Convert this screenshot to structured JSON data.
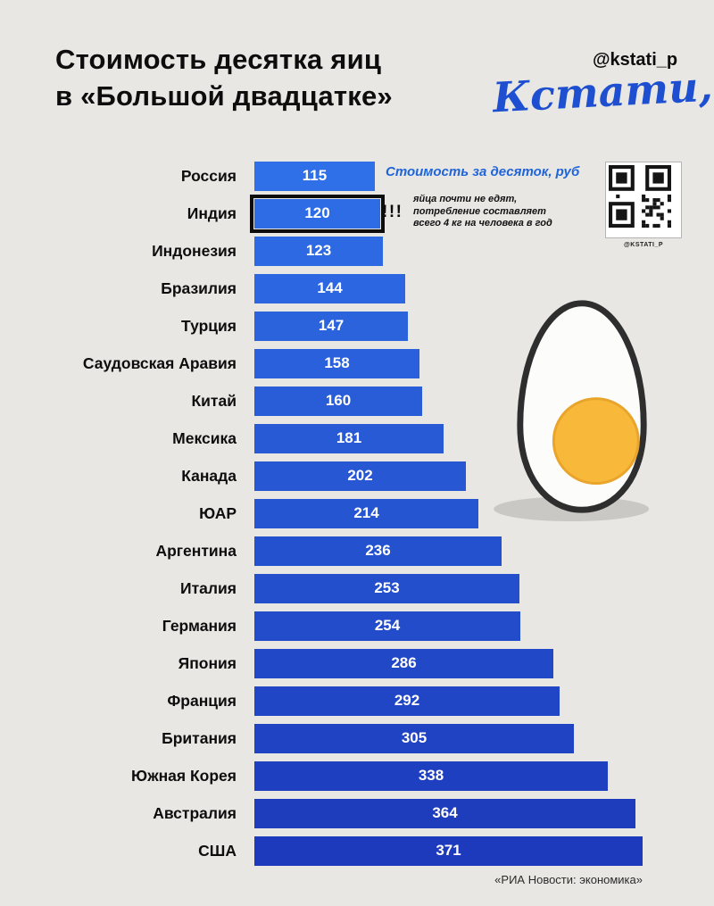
{
  "header": {
    "title_line1": "Стоимость десятка яиц",
    "title_line2": "в «Большой двадцатке»",
    "handle": "@kstati_p",
    "logo": "Кстати,"
  },
  "chart_data": {
    "type": "bar",
    "orientation": "horizontal",
    "title": "Стоимость десятка яиц в «Большой двадцатке»",
    "unit_label": "Стоимость за десяток, руб",
    "categories": [
      "Россия",
      "Индия",
      "Индонезия",
      "Бразилия",
      "Турция",
      "Саудовская Аравия",
      "Китай",
      "Мексика",
      "Канада",
      "ЮАР",
      "Аргентина",
      "Италия",
      "Германия",
      "Япония",
      "Франция",
      "Британия",
      "Южная Корея",
      "Австралия",
      "США"
    ],
    "values": [
      115,
      120,
      123,
      144,
      147,
      158,
      160,
      181,
      202,
      214,
      236,
      253,
      254,
      286,
      292,
      305,
      338,
      364,
      371
    ],
    "highlighted_category": "Индия",
    "xlim": [
      0,
      371
    ],
    "grid": false,
    "legend_position": "top-right",
    "bar_color_start": "#2f6fe7",
    "bar_color_end": "#1c3abb",
    "highlight_outline_color": "#0d0d0d"
  },
  "annotation": {
    "marks": "!!!",
    "text": "яйца почти не едят, потребление составляет всего 4 кг на человека в год"
  },
  "qr": {
    "caption": "@KSTATI_P"
  },
  "colors": {
    "background": "#e8e7e4",
    "accent_blue": "#1f64d8",
    "value_text": "#ffffff",
    "egg_yolk": "#f8b93a"
  },
  "footer": {
    "source": "«РИА Новости: экономика»"
  }
}
